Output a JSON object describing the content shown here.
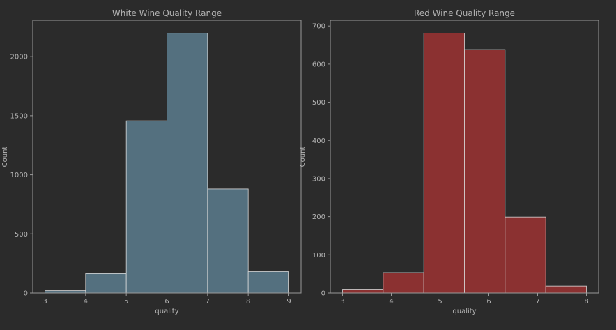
{
  "chart_data": [
    {
      "type": "bar",
      "title": "White Wine Quality Range",
      "xlabel": "quality",
      "ylabel": "Count",
      "bins": [
        [
          3,
          4
        ],
        [
          4,
          5
        ],
        [
          5,
          6
        ],
        [
          6,
          7
        ],
        [
          7,
          8
        ],
        [
          8,
          9
        ]
      ],
      "values": [
        20,
        163,
        1457,
        2198,
        880,
        180
      ],
      "xlim": [
        2.7,
        9.3
      ],
      "ylim": [
        0,
        2308
      ],
      "xticks": [
        3,
        4,
        5,
        6,
        7,
        8,
        9
      ],
      "yticks": [
        0,
        500,
        1000,
        1500,
        2000
      ],
      "color": "#54707f",
      "edge_color": "#d8d8d8",
      "grid": false
    },
    {
      "type": "bar",
      "title": "Red Wine Quality Range",
      "xlabel": "quality",
      "ylabel": "Count",
      "bins": [
        [
          3,
          3.833
        ],
        [
          3.833,
          4.667
        ],
        [
          4.667,
          5.5
        ],
        [
          5.5,
          6.333
        ],
        [
          6.333,
          7.167
        ],
        [
          7.167,
          8
        ]
      ],
      "values": [
        10,
        53,
        681,
        638,
        199,
        18
      ],
      "xlim": [
        2.75,
        8.25
      ],
      "ylim": [
        0,
        715
      ],
      "xticks": [
        3,
        4,
        5,
        6,
        7,
        8
      ],
      "yticks": [
        0,
        100,
        200,
        300,
        400,
        500,
        600,
        700
      ],
      "color": "#8b3131",
      "edge_color": "#d8d8d8",
      "grid": false
    }
  ],
  "colors": {
    "background": "#2b2b2b",
    "axes_frame": "#9a9a9a",
    "text": "#b4b4b4"
  }
}
